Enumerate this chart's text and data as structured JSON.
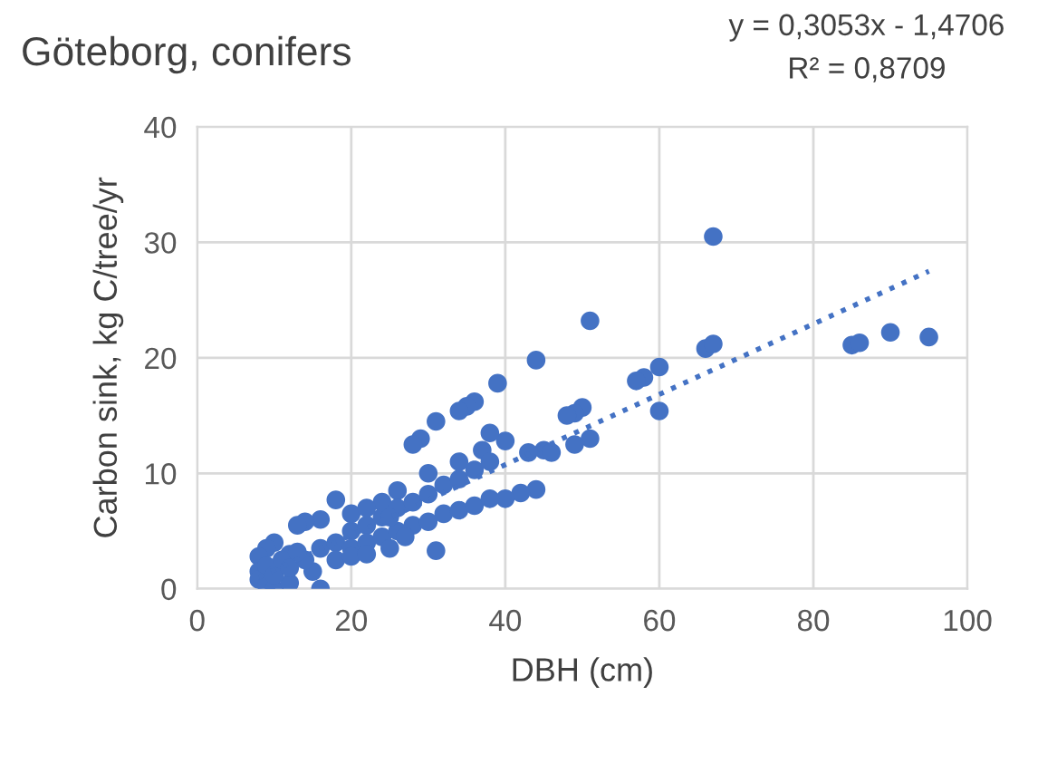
{
  "chart_data": {
    "type": "scatter",
    "title": "Göteborg, conifers",
    "xlabel": "DBH (cm)",
    "ylabel": "Carbon sink, kg C/tree/yr",
    "annotations": [
      "y = 0,3053x - 1,4706",
      "R² = 0,8709"
    ],
    "xlim": [
      0,
      100
    ],
    "ylim": [
      0,
      40
    ],
    "xticks": [
      0,
      20,
      40,
      60,
      80,
      100
    ],
    "yticks": [
      0,
      10,
      20,
      30,
      40
    ],
    "grid": true,
    "legend": false,
    "marker": "circle",
    "series": [
      {
        "color": "#4472c4",
        "x": [
          67,
          51,
          85,
          86,
          90,
          95,
          66,
          67,
          60,
          58,
          57,
          60,
          44,
          39,
          36,
          35,
          34,
          31,
          29,
          28,
          50,
          49,
          48,
          51,
          49,
          45,
          46,
          44,
          42,
          40,
          43,
          40,
          37,
          34,
          30,
          38,
          26,
          24,
          18,
          16,
          14,
          13,
          10,
          9,
          8,
          8,
          8,
          9,
          10,
          12,
          16,
          15,
          12,
          14,
          16,
          18,
          20,
          22,
          24,
          26,
          28,
          30,
          32,
          34,
          36,
          38,
          20,
          22,
          24,
          26,
          28,
          30,
          32,
          34,
          36,
          38,
          18,
          20,
          22,
          25,
          27,
          31,
          20,
          22,
          25,
          9,
          10,
          11,
          12,
          13
        ],
        "values": [
          30.5,
          23.2,
          21.1,
          21.3,
          22.2,
          21.8,
          20.8,
          21.2,
          19.2,
          18.3,
          18.0,
          15.4,
          19.8,
          17.8,
          16.2,
          15.8,
          15.4,
          14.5,
          13,
          12.5,
          15.7,
          15.2,
          15,
          13,
          12.5,
          12,
          11.8,
          8.6,
          8.3,
          7.8,
          11.8,
          12.8,
          12,
          11,
          10,
          13.5,
          8.5,
          7.5,
          7.7,
          6,
          5.8,
          5.5,
          4,
          3.5,
          2.8,
          1.5,
          0.8,
          0.3,
          0,
          0.5,
          0,
          1.5,
          3,
          2.5,
          3.5,
          4,
          5,
          5.5,
          6.2,
          7,
          7.5,
          8.2,
          9,
          9.5,
          10.3,
          11,
          3.5,
          4,
          4.5,
          5,
          5.5,
          5.8,
          6.5,
          6.8,
          7.2,
          7.8,
          2.5,
          2.8,
          3,
          3.5,
          4.5,
          3.3,
          6.5,
          7,
          6.2,
          2,
          1.2,
          2.5,
          1.8,
          3.2
        ]
      },
      {
        "type": "line",
        "color": "#4472c4",
        "line_style": "dotted",
        "marker": "none",
        "x": [
          8,
          95
        ],
        "values": [
          1.0,
          27.5
        ]
      }
    ]
  }
}
